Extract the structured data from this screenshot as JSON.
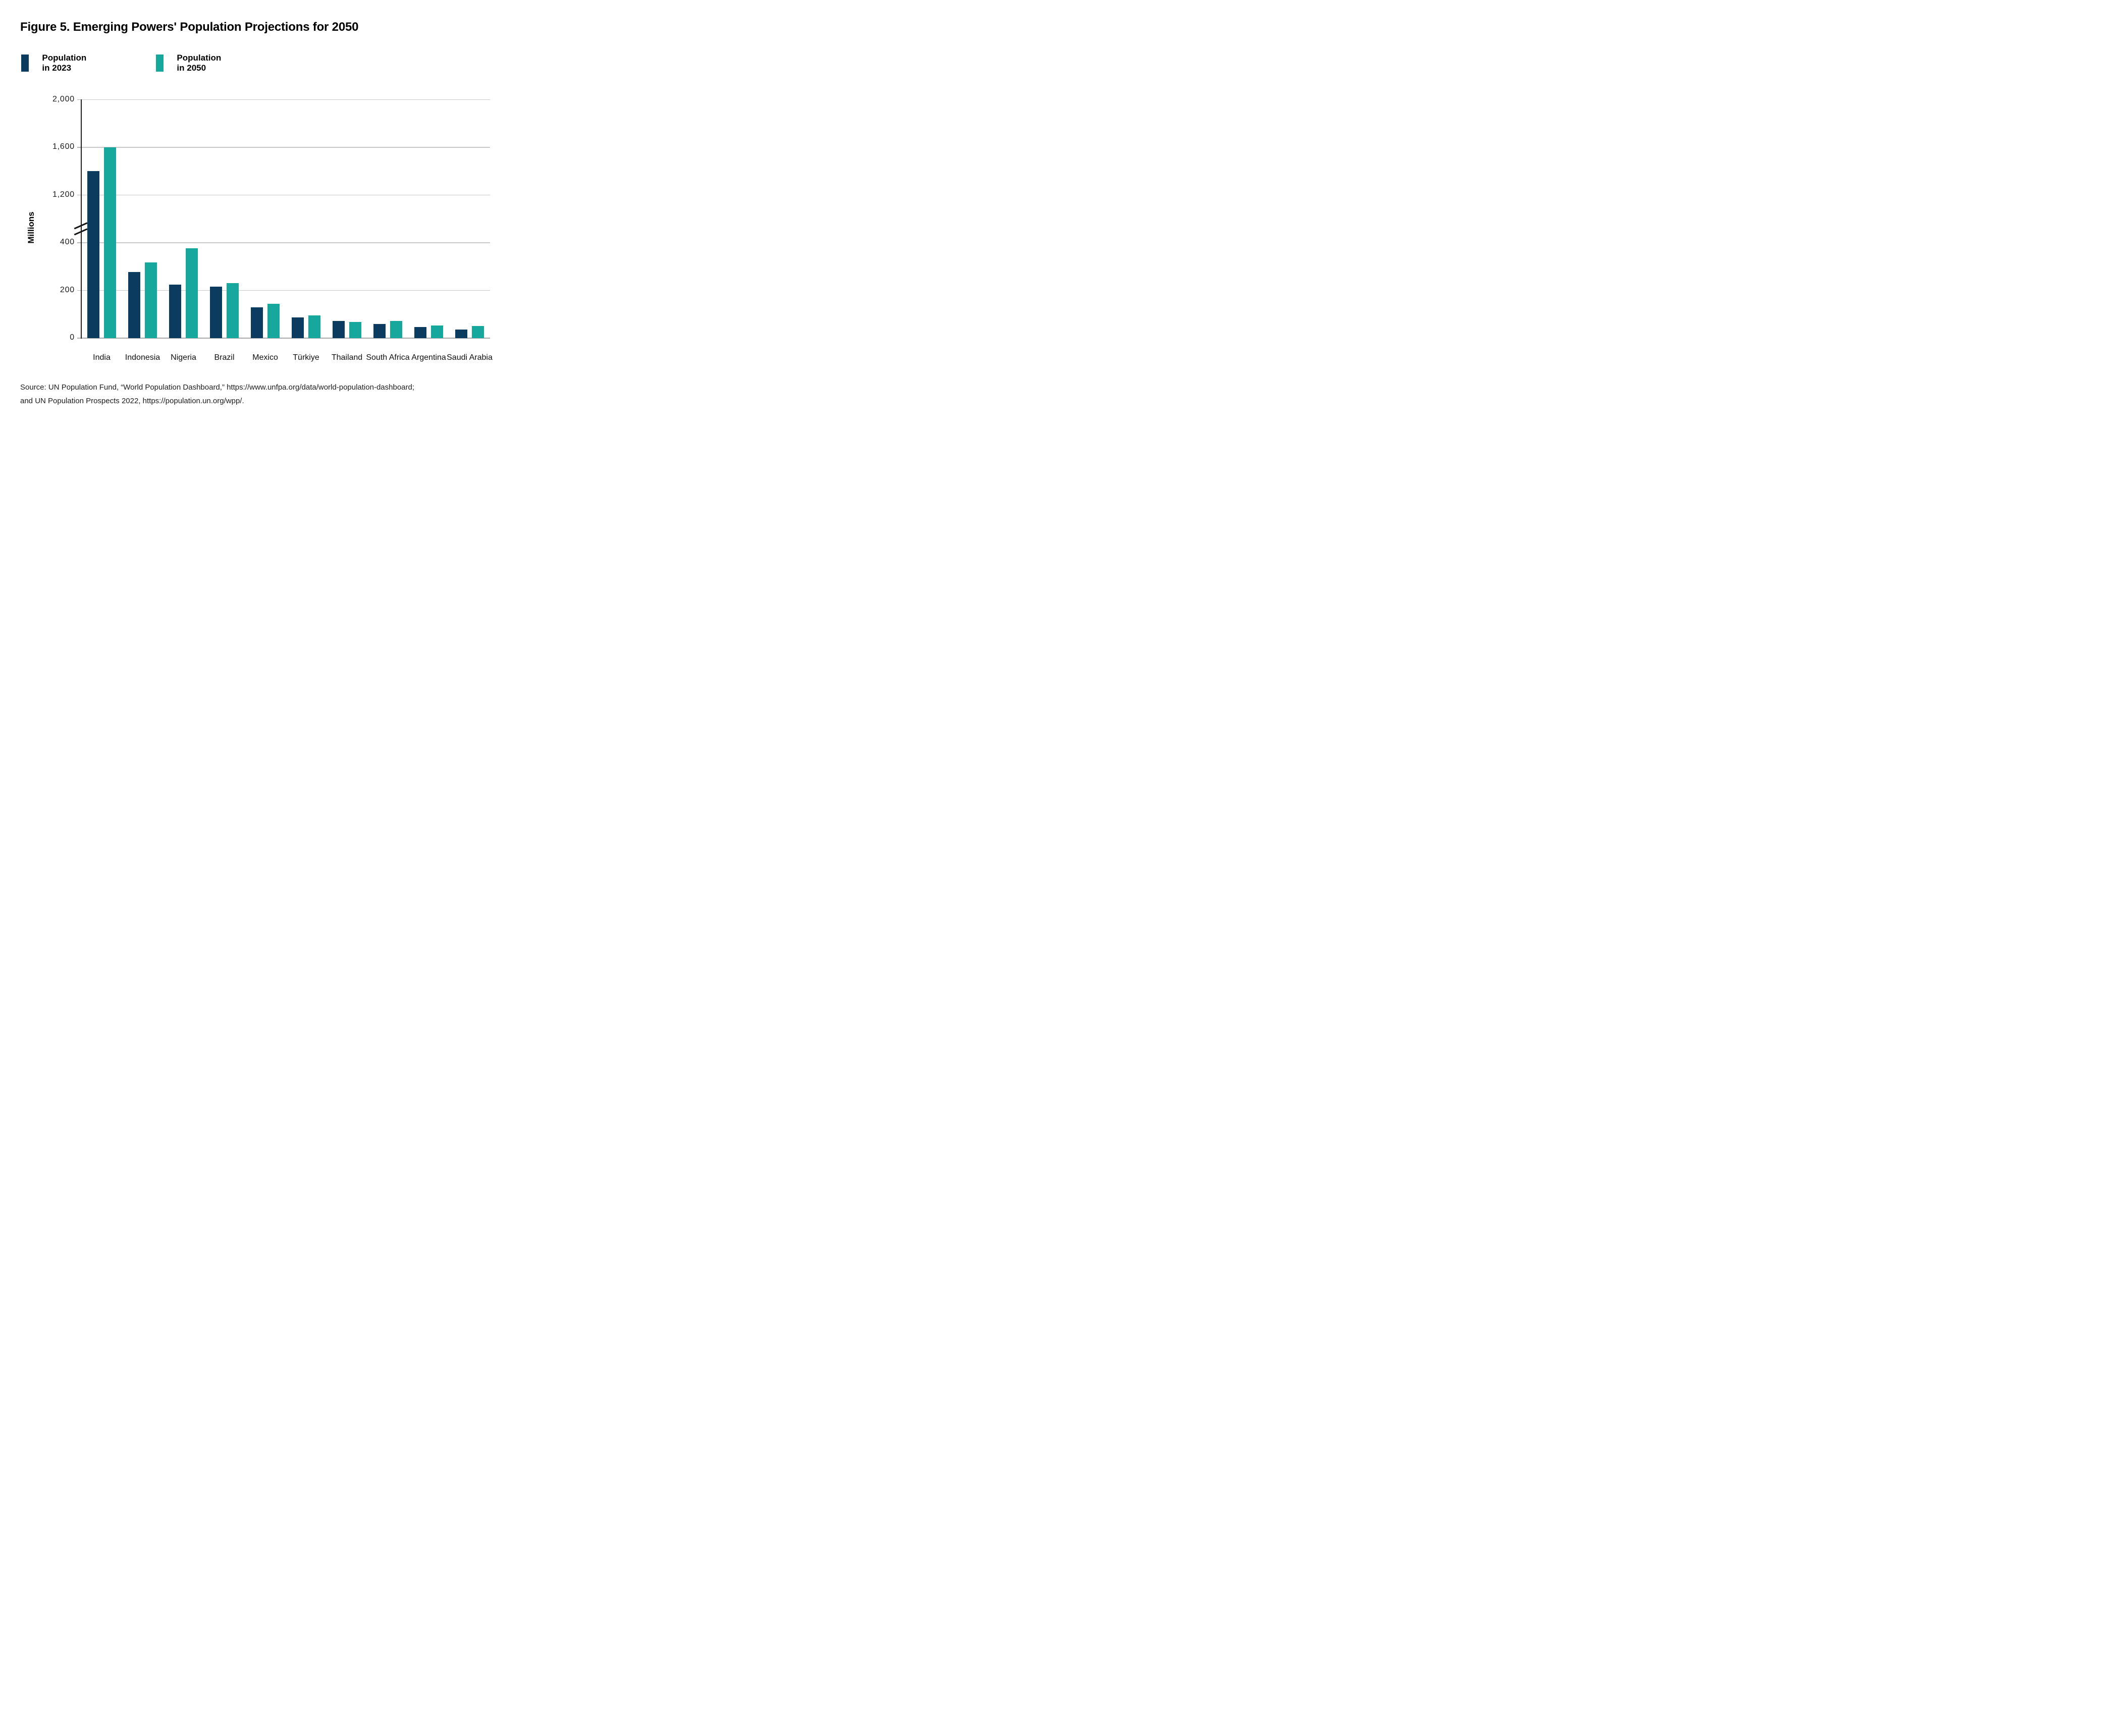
{
  "figure": {
    "title": "Figure 5. Emerging Powers' Population Projections for 2050",
    "source_lines": [
      "Source: UN Population Fund, “World Population Dashboard,” https://www.unfpa.org/data/world-population-dashboard;",
      "and UN Population Prospects 2022,  https://population.un.org/wpp/."
    ]
  },
  "legend": {
    "items": [
      {
        "label": "Population in 2023",
        "color": "#0B3B5E"
      },
      {
        "label": "Population in 2050",
        "color": "#17A89D"
      }
    ]
  },
  "chart_data": {
    "type": "bar",
    "title": "Figure 5. Emerging Powers' Population Projections for 2050",
    "ylabel": "Millions",
    "unit": "millions of people",
    "legend_position": "top-left",
    "categories": [
      "India",
      "Indonesia",
      "Nigeria",
      "Brazil",
      "Mexico",
      "Türkiye",
      "Thailand",
      "South Africa",
      "Argentina",
      "Saudi Arabia"
    ],
    "series": [
      {
        "name": "Population in 2023",
        "color": "#0B3B5E",
        "values": [
          1400,
          277,
          224,
          216,
          129,
          86,
          72,
          60,
          46,
          37
        ]
      },
      {
        "name": "Population in 2050",
        "color": "#17A89D",
        "values": [
          1600,
          317,
          377,
          231,
          144,
          96,
          68,
          73,
          52,
          50
        ]
      }
    ],
    "y_axis": {
      "label": "Millions",
      "gridlines": true,
      "ticks": [
        {
          "label": "0",
          "value": 0
        },
        {
          "label": "200",
          "value": 200
        },
        {
          "label": "400",
          "value": 400
        },
        {
          "label": "1,200",
          "value": 1200
        },
        {
          "label": "1,600",
          "value": 1600
        },
        {
          "label": "2,000",
          "value": 2000
        }
      ],
      "axis_break": {
        "between": [
          400,
          1200
        ]
      },
      "lower_scale_units_per_step": 200,
      "upper_scale_units_per_step": 400
    }
  }
}
